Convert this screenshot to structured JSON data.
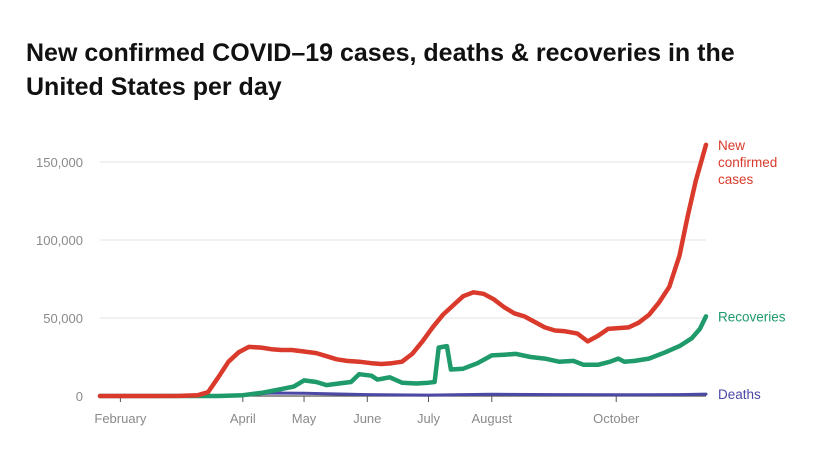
{
  "chart_data": {
    "type": "line",
    "title": "New confirmed COVID–19 cases, deaths & recoveries in the United States per day",
    "xlabel": "",
    "ylabel": "",
    "x_axis": {
      "type": "date",
      "range": [
        "2020-01-22",
        "2020-11-14"
      ],
      "ticks": [
        {
          "date": "2020-02-01",
          "label": "February"
        },
        {
          "date": "2020-04-01",
          "label": "April"
        },
        {
          "date": "2020-05-01",
          "label": "May"
        },
        {
          "date": "2020-06-01",
          "label": "June"
        },
        {
          "date": "2020-07-01",
          "label": "July"
        },
        {
          "date": "2020-08-01",
          "label": "August"
        },
        {
          "date": "2020-10-01",
          "label": "October"
        }
      ]
    },
    "y_axis": {
      "range": [
        0,
        160000
      ],
      "ticks": [
        {
          "value": 0,
          "label": "0"
        },
        {
          "value": 50000,
          "label": "50,000"
        },
        {
          "value": 100000,
          "label": "100,000"
        },
        {
          "value": 150000,
          "label": "150,000"
        }
      ]
    },
    "grid": "horizontal",
    "legend": "direct labels at line ends (right)",
    "series": [
      {
        "name": "New confirmed cases",
        "label_lines": [
          "New",
          "confirmed",
          "cases"
        ],
        "color": "#d93a2b",
        "points": [
          [
            "2020-01-22",
            0
          ],
          [
            "2020-02-15",
            0
          ],
          [
            "2020-03-01",
            50
          ],
          [
            "2020-03-10",
            500
          ],
          [
            "2020-03-15",
            2500
          ],
          [
            "2020-03-20",
            12000
          ],
          [
            "2020-03-25",
            22000
          ],
          [
            "2020-03-30",
            28000
          ],
          [
            "2020-04-04",
            31500
          ],
          [
            "2020-04-10",
            31000
          ],
          [
            "2020-04-15",
            30000
          ],
          [
            "2020-04-20",
            29500
          ],
          [
            "2020-04-25",
            29500
          ],
          [
            "2020-05-01",
            28500
          ],
          [
            "2020-05-07",
            27500
          ],
          [
            "2020-05-12",
            25500
          ],
          [
            "2020-05-17",
            23500
          ],
          [
            "2020-05-22",
            22500
          ],
          [
            "2020-05-28",
            22000
          ],
          [
            "2020-06-03",
            21000
          ],
          [
            "2020-06-08",
            20500
          ],
          [
            "2020-06-13",
            21000
          ],
          [
            "2020-06-18",
            22000
          ],
          [
            "2020-06-23",
            27000
          ],
          [
            "2020-06-28",
            35000
          ],
          [
            "2020-07-03",
            44000
          ],
          [
            "2020-07-08",
            52000
          ],
          [
            "2020-07-13",
            58000
          ],
          [
            "2020-07-18",
            64000
          ],
          [
            "2020-07-23",
            66500
          ],
          [
            "2020-07-28",
            65500
          ],
          [
            "2020-08-02",
            62000
          ],
          [
            "2020-08-07",
            57000
          ],
          [
            "2020-08-12",
            53000
          ],
          [
            "2020-08-17",
            51000
          ],
          [
            "2020-08-22",
            47500
          ],
          [
            "2020-08-27",
            44000
          ],
          [
            "2020-09-01",
            42000
          ],
          [
            "2020-09-06",
            41500
          ],
          [
            "2020-09-12",
            40000
          ],
          [
            "2020-09-17",
            35000
          ],
          [
            "2020-09-22",
            38500
          ],
          [
            "2020-09-27",
            43000
          ],
          [
            "2020-10-02",
            43500
          ],
          [
            "2020-10-07",
            44000
          ],
          [
            "2020-10-12",
            47000
          ],
          [
            "2020-10-17",
            52000
          ],
          [
            "2020-10-22",
            60000
          ],
          [
            "2020-10-27",
            70000
          ],
          [
            "2020-11-01",
            90000
          ],
          [
            "2020-11-05",
            115000
          ],
          [
            "2020-11-09",
            138000
          ],
          [
            "2020-11-14",
            161000
          ]
        ]
      },
      {
        "name": "Recoveries",
        "label_lines": [
          "Recoveries"
        ],
        "color": "#1e9a6b",
        "points": [
          [
            "2020-01-22",
            0
          ],
          [
            "2020-03-20",
            0
          ],
          [
            "2020-04-01",
            500
          ],
          [
            "2020-04-10",
            2000
          ],
          [
            "2020-04-18",
            4000
          ],
          [
            "2020-04-26",
            6000
          ],
          [
            "2020-05-01",
            10000
          ],
          [
            "2020-05-07",
            9000
          ],
          [
            "2020-05-12",
            7000
          ],
          [
            "2020-05-18",
            8000
          ],
          [
            "2020-05-24",
            9000
          ],
          [
            "2020-05-28",
            14000
          ],
          [
            "2020-06-03",
            13000
          ],
          [
            "2020-06-06",
            10500
          ],
          [
            "2020-06-12",
            12000
          ],
          [
            "2020-06-18",
            8500
          ],
          [
            "2020-06-25",
            8000
          ],
          [
            "2020-07-01",
            8500
          ],
          [
            "2020-07-04",
            9000
          ],
          [
            "2020-07-06",
            31000
          ],
          [
            "2020-07-10",
            32000
          ],
          [
            "2020-07-12",
            17000
          ],
          [
            "2020-07-18",
            17500
          ],
          [
            "2020-07-25",
            21000
          ],
          [
            "2020-08-01",
            26000
          ],
          [
            "2020-08-07",
            26500
          ],
          [
            "2020-08-13",
            27000
          ],
          [
            "2020-08-20",
            25000
          ],
          [
            "2020-08-27",
            24000
          ],
          [
            "2020-09-03",
            22000
          ],
          [
            "2020-09-10",
            22500
          ],
          [
            "2020-09-15",
            20000
          ],
          [
            "2020-09-22",
            20000
          ],
          [
            "2020-09-28",
            22000
          ],
          [
            "2020-10-02",
            24000
          ],
          [
            "2020-10-05",
            22000
          ],
          [
            "2020-10-10",
            22500
          ],
          [
            "2020-10-17",
            24000
          ],
          [
            "2020-10-25",
            28000
          ],
          [
            "2020-11-01",
            32000
          ],
          [
            "2020-11-07",
            37000
          ],
          [
            "2020-11-11",
            43000
          ],
          [
            "2020-11-14",
            51000
          ]
        ]
      },
      {
        "name": "Deaths",
        "label_lines": [
          "Deaths"
        ],
        "color": "#4b48a6",
        "points": [
          [
            "2020-01-22",
            0
          ],
          [
            "2020-03-15",
            0
          ],
          [
            "2020-04-01",
            700
          ],
          [
            "2020-04-15",
            1900
          ],
          [
            "2020-05-01",
            1700
          ],
          [
            "2020-06-01",
            900
          ],
          [
            "2020-07-01",
            550
          ],
          [
            "2020-08-01",
            1100
          ],
          [
            "2020-09-01",
            900
          ],
          [
            "2020-10-01",
            750
          ],
          [
            "2020-11-01",
            900
          ],
          [
            "2020-11-14",
            1200
          ]
        ]
      }
    ]
  }
}
